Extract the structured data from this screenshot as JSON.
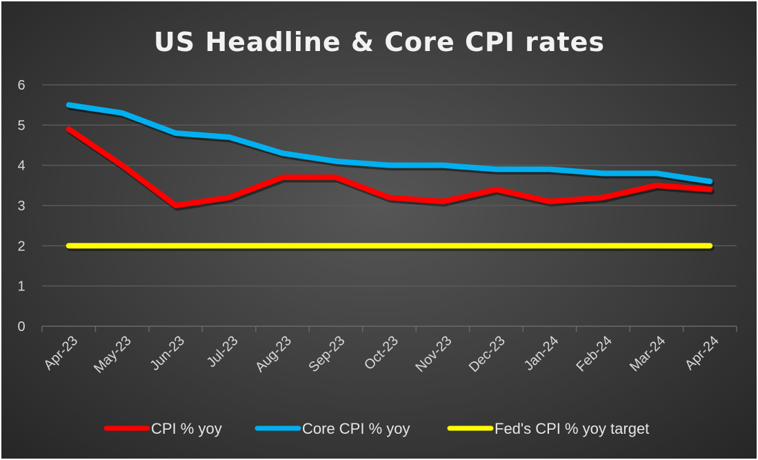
{
  "chart_data": {
    "type": "line",
    "title": "US Headline & Core CPI rates",
    "xlabel": "",
    "ylabel": "",
    "ylim": [
      0,
      6
    ],
    "yticks": [
      "0",
      "1",
      "2",
      "3",
      "4",
      "5",
      "6"
    ],
    "grid": true,
    "legend_position": "bottom",
    "categories": [
      "Apr-23",
      "May-23",
      "Jun-23",
      "Jul-23",
      "Aug-23",
      "Sep-23",
      "Oct-23",
      "Nov-23",
      "Dec-23",
      "Jan-24",
      "Feb-24",
      "Mar-24",
      "Apr-24"
    ],
    "series": [
      {
        "name": "CPI % yoy",
        "color": "#ff0000",
        "values": [
          4.9,
          4.0,
          3.0,
          3.2,
          3.7,
          3.7,
          3.2,
          3.1,
          3.4,
          3.1,
          3.2,
          3.5,
          3.4
        ]
      },
      {
        "name": "Core CPI % yoy",
        "color": "#00b0f0",
        "values": [
          5.5,
          5.3,
          4.8,
          4.7,
          4.3,
          4.1,
          4.0,
          4.0,
          3.9,
          3.9,
          3.8,
          3.8,
          3.6
        ]
      },
      {
        "name": "Fed's CPI % yoy target",
        "color": "#ffff00",
        "values": [
          2,
          2,
          2,
          2,
          2,
          2,
          2,
          2,
          2,
          2,
          2,
          2,
          2
        ]
      }
    ]
  }
}
